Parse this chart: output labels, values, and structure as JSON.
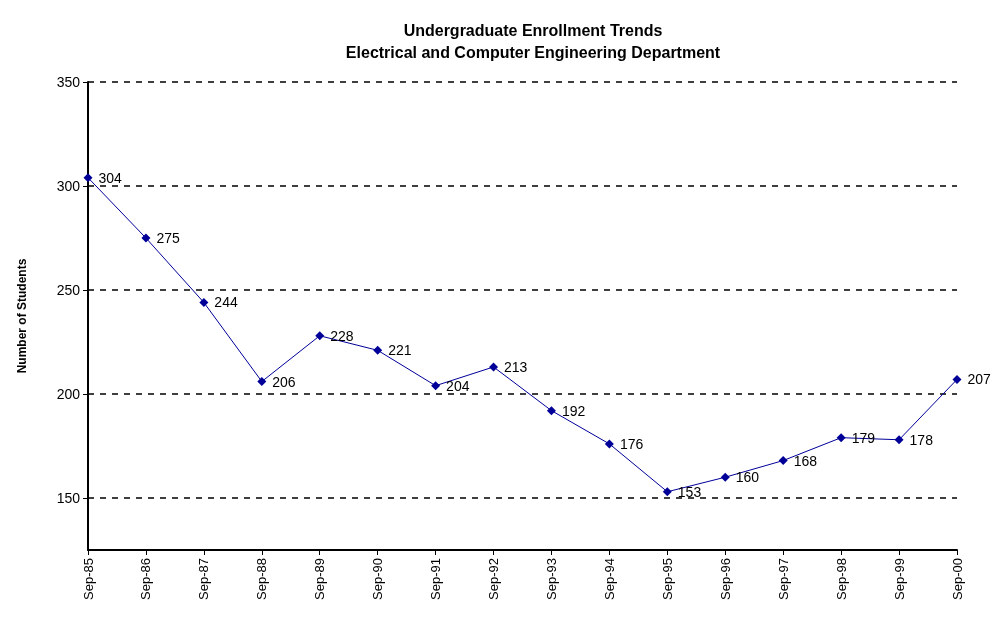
{
  "chart_data": {
    "type": "line",
    "title": "Undergraduate Enrollment Trends\nElectrical and Computer Engineering Department",
    "ylabel": "Number of Students",
    "categories": [
      "Sep-85",
      "Sep-86",
      "Sep-87",
      "Sep-88",
      "Sep-89",
      "Sep-90",
      "Sep-91",
      "Sep-92",
      "Sep-93",
      "Sep-94",
      "Sep-95",
      "Sep-96",
      "Sep-97",
      "Sep-98",
      "Sep-99",
      "Sep-00"
    ],
    "series": [
      {
        "color": "#000099",
        "values": [
          304,
          275,
          244,
          206,
          228,
          221,
          204,
          213,
          192,
          176,
          153,
          160,
          168,
          179,
          178,
          207
        ]
      }
    ],
    "ylim": [
      125,
      350
    ],
    "yticks": [
      150,
      200,
      250,
      300,
      350
    ],
    "grid": "y",
    "marker": "diamond",
    "line_style": "solid",
    "data_labels": true
  }
}
